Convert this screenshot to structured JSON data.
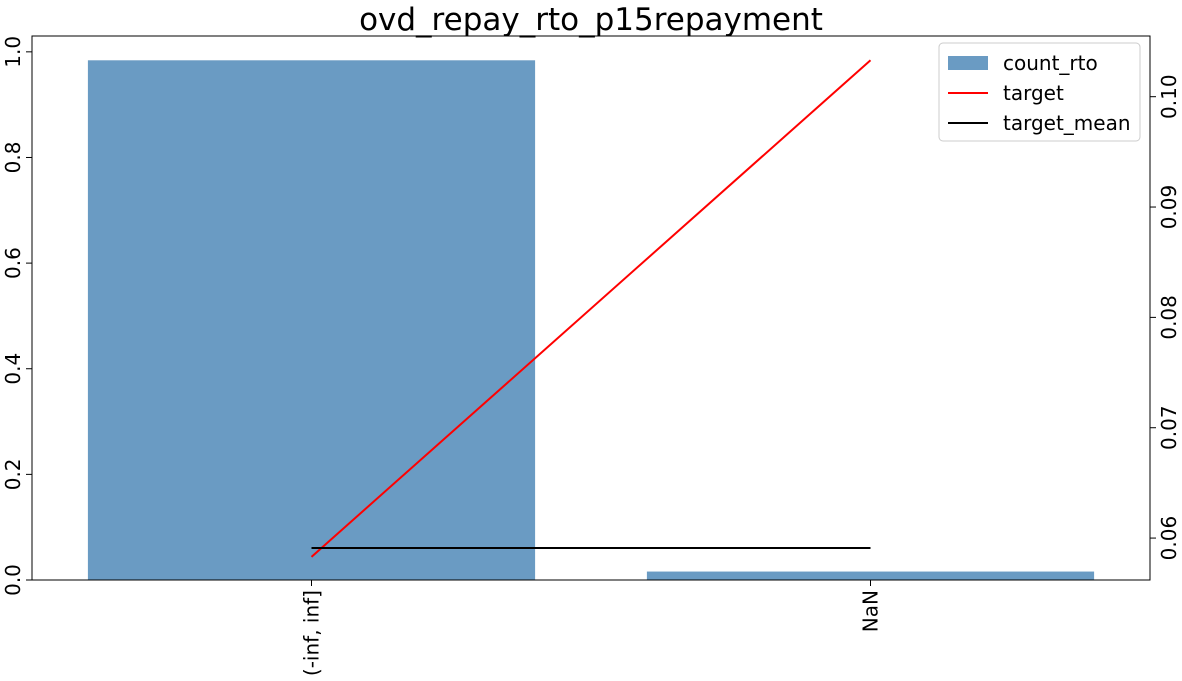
{
  "chart_data": {
    "type": "bar",
    "title": "ovd_repay_rto_p15repayment",
    "xlabel": "",
    "ylabel": "",
    "categories": [
      "(-inf, inf]",
      "NaN"
    ],
    "series": [
      {
        "name": "count_rto",
        "kind": "bar",
        "axis": "left",
        "values": [
          0.984,
          0.016
        ]
      },
      {
        "name": "target",
        "kind": "line",
        "axis": "right",
        "values": [
          0.0583,
          0.1033
        ]
      },
      {
        "name": "target_mean",
        "kind": "line",
        "axis": "right",
        "values": [
          0.0591,
          0.0591
        ]
      }
    ],
    "ylim": [
      0.0,
      1.03
    ],
    "y2lim": [
      0.0562,
      0.1055
    ],
    "yticks": [
      "0.0",
      "0.2",
      "0.4",
      "0.6",
      "0.8",
      "1.0"
    ],
    "y2ticks": [
      "0.06",
      "0.07",
      "0.08",
      "0.09",
      "0.10"
    ],
    "legend_position": "top-right",
    "grid": false,
    "colors": {
      "count_rto": "#6a9bc3",
      "target": "#ff0000",
      "target_mean": "#000000"
    }
  }
}
